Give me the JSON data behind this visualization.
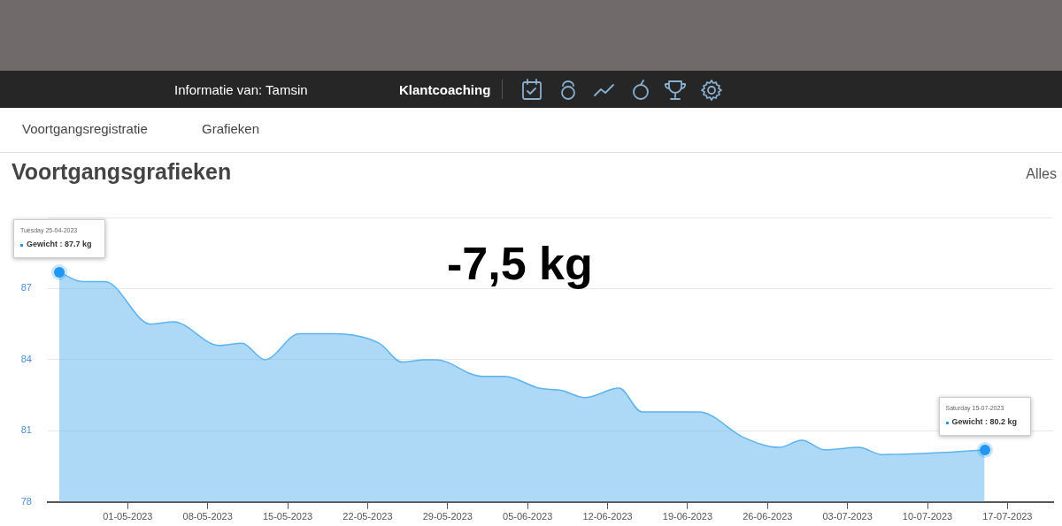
{
  "chart_data": {
    "type": "area",
    "title": "Voortgangsgrafieken",
    "x": [
      "2023-04-25",
      "2023-04-27",
      "2023-04-29",
      "2023-05-03",
      "2023-05-05",
      "2023-05-09",
      "2023-05-11",
      "2023-05-13",
      "2023-05-16",
      "2023-05-19",
      "2023-05-23",
      "2023-05-25",
      "2023-05-27",
      "2023-05-28",
      "2023-06-01",
      "2023-06-03",
      "2023-06-06",
      "2023-06-08",
      "2023-06-10",
      "2023-06-13",
      "2023-06-15",
      "2023-06-20",
      "2023-06-24",
      "2023-06-27",
      "2023-06-29",
      "2023-07-01",
      "2023-07-04",
      "2023-07-06",
      "2023-07-12",
      "2023-07-15"
    ],
    "series": [
      {
        "color": "#5cb3f0",
        "values": [
          87.7,
          87.3,
          87.3,
          85.5,
          85.6,
          84.6,
          84.7,
          84.0,
          85.1,
          85.1,
          84.7,
          83.9,
          84.0,
          84.0,
          83.3,
          83.3,
          82.8,
          82.7,
          82.4,
          82.8,
          81.8,
          81.8,
          80.7,
          80.3,
          80.6,
          80.2,
          80.3,
          80.0,
          80.1,
          80.2
        ]
      }
    ],
    "xlim": [
      "2023-04-24",
      "2023-07-21"
    ],
    "xticks": [
      {
        "value": "2023-05-01",
        "label": "01-05-2023"
      },
      {
        "value": "2023-05-08",
        "label": "08-05-2023"
      },
      {
        "value": "2023-05-15",
        "label": "15-05-2023"
      },
      {
        "value": "2023-05-22",
        "label": "22-05-2023"
      },
      {
        "value": "2023-05-29",
        "label": "29-05-2023"
      },
      {
        "value": "2023-06-05",
        "label": "05-06-2023"
      },
      {
        "value": "2023-06-12",
        "label": "12-06-2023"
      },
      {
        "value": "2023-06-19",
        "label": "19-06-2023"
      },
      {
        "value": "2023-06-26",
        "label": "26-06-2023"
      },
      {
        "value": "2023-07-03",
        "label": "03-07-2023"
      },
      {
        "value": "2023-07-10",
        "label": "10-07-2023"
      },
      {
        "value": "2023-07-17",
        "label": "17-07-2023"
      }
    ],
    "ylim": [
      78,
      90
    ],
    "yticks": [
      78,
      81,
      84,
      87,
      {
        "value": 90,
        "label": null
      }
    ],
    "grid": "y",
    "legend": false,
    "marker": "none",
    "line_style": "solid",
    "annotations": [
      "Informatie van: Tamsin",
      "Klantcoaching",
      "Voortgangsregistratie",
      "Grafieken",
      "Alles",
      "-7,5 kg",
      {
        "text": "Tuesday 25-04-2023\nGewicht : 87.7 kg",
        "x": "2023-04-25",
        "y": 87.7
      },
      {
        "text": "Saturday 15-07-2023\nGewicht : 80.2 kg",
        "x": "2023-07-15",
        "y": 80.2
      }
    ]
  }
}
